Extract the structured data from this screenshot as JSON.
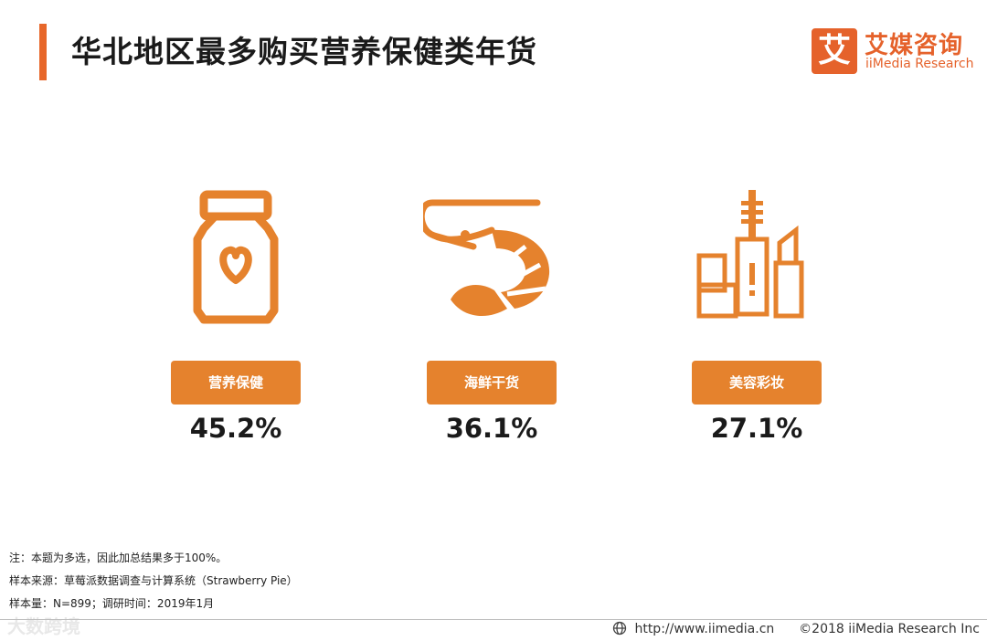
{
  "header": {
    "title": "华北地区最多购买营养保健类年货"
  },
  "brand": {
    "mark": "艾",
    "name_cn": "艾媒咨询",
    "name_en": "iiMedia Research",
    "color": "#e5622b"
  },
  "accent_color": "#e5822d",
  "items": [
    {
      "label": "营养保健",
      "value": "45.2%",
      "icon": "nutrition-jar-icon"
    },
    {
      "label": "海鲜干货",
      "value": "36.1%",
      "icon": "shrimp-icon"
    },
    {
      "label": "美容彩妆",
      "value": "27.1%",
      "icon": "cosmetics-icon"
    }
  ],
  "notes": [
    "注：本题为多选，因此加总结果多于100%。",
    "样本来源：草莓派数据调查与计算系统（Strawberry Pie）",
    "样本量：N=899；调研时间：2019年1月"
  ],
  "footer": {
    "url": "http://www.iimedia.cn",
    "copyright": "©2018  iiMedia Research  Inc"
  },
  "watermark": "大数跨境"
}
